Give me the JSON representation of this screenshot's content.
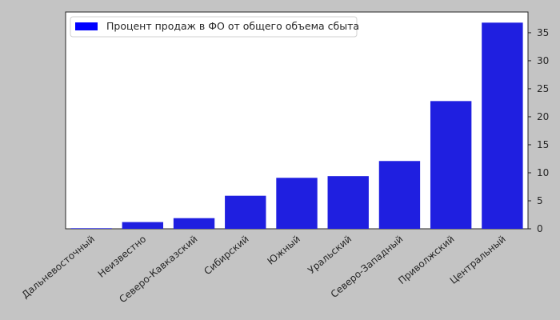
{
  "chart_data": {
    "type": "bar",
    "categories": [
      "Дальневосточный",
      "Неизвестно",
      "Северо-Кавказский",
      "Сибирский",
      "Южный",
      "Уральский",
      "Северо-Западный",
      "Приволжский",
      "Центральный"
    ],
    "series": [
      {
        "name": "Процент продаж в ФО от общего объема сбыта",
        "values": [
          0.1,
          1.2,
          1.9,
          5.9,
          9.1,
          9.4,
          12.1,
          22.8,
          36.8
        ],
        "color": "#1f1fe0"
      }
    ],
    "legend_marker_color": "#0000ff",
    "ylim": [
      0,
      38.7
    ],
    "yticks": [
      0,
      5,
      10,
      15,
      20,
      25,
      30,
      35
    ],
    "y_axis_side": "right",
    "grid": false,
    "legend_position": "top-left",
    "title": "",
    "xlabel": "",
    "ylabel": ""
  }
}
